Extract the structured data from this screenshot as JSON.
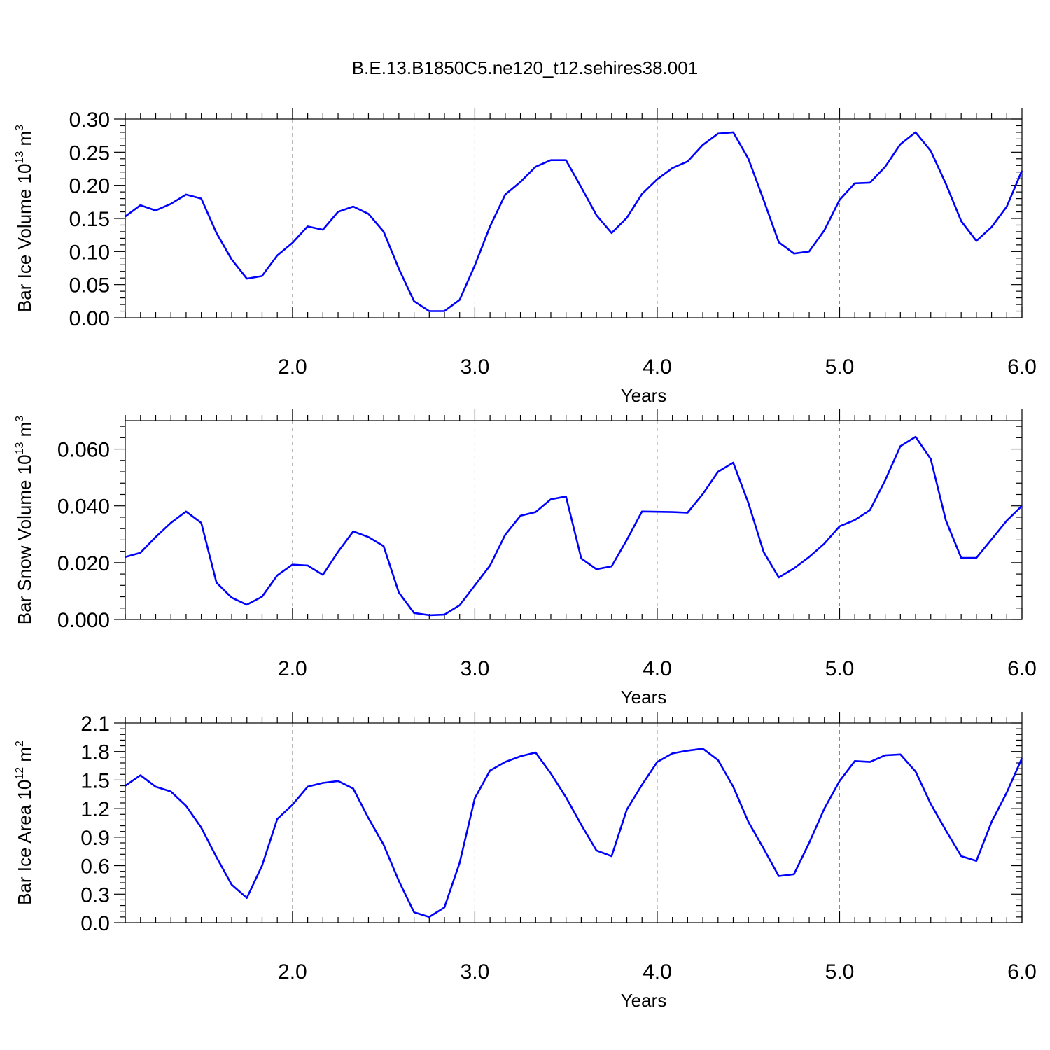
{
  "figure_title": "B.E.13.B1850C5.ne120_t12.sehires38.001",
  "chart_data": [
    {
      "type": "line",
      "title": "",
      "xlabel": "Years",
      "ylabel": {
        "base": "Bar Ice Volume 10",
        "exponent": "13",
        "unit": " m",
        "unit_exponent": "3"
      },
      "xlim": [
        1.083,
        6.0
      ],
      "ylim": [
        0.0,
        0.3
      ],
      "xticks": [
        2.0,
        3.0,
        4.0,
        5.0,
        6.0
      ],
      "xtick_labels": [
        "2.0",
        "3.0",
        "4.0",
        "5.0",
        "6.0"
      ],
      "yticks": [
        0.0,
        0.05,
        0.1,
        0.15,
        0.2,
        0.25,
        0.3
      ],
      "ytick_labels": [
        "0.00",
        "0.05",
        "0.10",
        "0.15",
        "0.20",
        "0.25",
        "0.30"
      ],
      "grid": "x-dashed",
      "series": [
        {
          "color": "#0000ff",
          "values": [
            0.153,
            0.17,
            0.162,
            0.172,
            0.186,
            0.18,
            0.128,
            0.088,
            0.059,
            0.063,
            0.094,
            0.113,
            0.138,
            0.133,
            0.16,
            0.168,
            0.157,
            0.13,
            0.074,
            0.025,
            0.01,
            0.01,
            0.027,
            0.079,
            0.138,
            0.186,
            0.205,
            0.228,
            0.238,
            0.238,
            0.197,
            0.155,
            0.128,
            0.151,
            0.187,
            0.209,
            0.226,
            0.236,
            0.261,
            0.278,
            0.28,
            0.24,
            0.178,
            0.114,
            0.097,
            0.1,
            0.132,
            0.178,
            0.203,
            0.204,
            0.228,
            0.262,
            0.28,
            0.252,
            0.202,
            0.146,
            0.116,
            0.137,
            0.168,
            0.222
          ]
        }
      ]
    },
    {
      "type": "line",
      "title": "",
      "xlabel": "Years",
      "ylabel": {
        "base": "Bar Snow Volume 10",
        "exponent": "13",
        "unit": " m",
        "unit_exponent": "3"
      },
      "xlim": [
        1.083,
        6.0
      ],
      "ylim": [
        0.0,
        0.07
      ],
      "xticks": [
        2.0,
        3.0,
        4.0,
        5.0,
        6.0
      ],
      "xtick_labels": [
        "2.0",
        "3.0",
        "4.0",
        "5.0",
        "6.0"
      ],
      "yticks": [
        0.0,
        0.02,
        0.04,
        0.06
      ],
      "ytick_labels": [
        "0.000",
        "0.020",
        "0.040",
        "0.060"
      ],
      "grid": "x-dashed",
      "series": [
        {
          "color": "#0000ff",
          "values": [
            0.022,
            0.0235,
            0.029,
            0.034,
            0.038,
            0.034,
            0.013,
            0.0077,
            0.0052,
            0.008,
            0.0155,
            0.0193,
            0.019,
            0.0157,
            0.0238,
            0.031,
            0.029,
            0.0258,
            0.0095,
            0.0023,
            0.0015,
            0.0017,
            0.005,
            0.012,
            0.019,
            0.0298,
            0.0365,
            0.0378,
            0.0423,
            0.0433,
            0.0215,
            0.0177,
            0.0187,
            0.028,
            0.038,
            0.0379,
            0.0378,
            0.0376,
            0.0442,
            0.052,
            0.0552,
            0.041,
            0.0238,
            0.0148,
            0.018,
            0.022,
            0.0267,
            0.0328,
            0.035,
            0.0385,
            0.049,
            0.061,
            0.0643,
            0.0565,
            0.0348,
            0.0217,
            0.0217,
            0.0282,
            0.0348,
            0.04
          ]
        }
      ]
    },
    {
      "type": "line",
      "title": "",
      "xlabel": "Years",
      "ylabel": {
        "base": "Bar Ice Area 10",
        "exponent": "12",
        "unit": " m",
        "unit_exponent": "2"
      },
      "xlim": [
        1.083,
        6.0
      ],
      "ylim": [
        0.0,
        2.1
      ],
      "xticks": [
        2.0,
        3.0,
        4.0,
        5.0,
        6.0
      ],
      "xtick_labels": [
        "2.0",
        "3.0",
        "4.0",
        "5.0",
        "6.0"
      ],
      "yticks": [
        0.0,
        0.3,
        0.6,
        0.9,
        1.2,
        1.5,
        1.8,
        2.1
      ],
      "ytick_labels": [
        "0.0",
        "0.3",
        "0.6",
        "0.9",
        "1.2",
        "1.5",
        "1.8",
        "2.1"
      ],
      "grid": "x-dashed",
      "series": [
        {
          "color": "#0000ff",
          "values": [
            1.44,
            1.55,
            1.43,
            1.38,
            1.23,
            1.0,
            0.69,
            0.4,
            0.26,
            0.6,
            1.09,
            1.24,
            1.43,
            1.47,
            1.49,
            1.41,
            1.1,
            0.82,
            0.44,
            0.11,
            0.06,
            0.16,
            0.63,
            1.31,
            1.6,
            1.69,
            1.75,
            1.79,
            1.57,
            1.32,
            1.03,
            0.76,
            0.7,
            1.19,
            1.45,
            1.69,
            1.78,
            1.81,
            1.83,
            1.71,
            1.43,
            1.06,
            0.78,
            0.49,
            0.51,
            0.84,
            1.2,
            1.49,
            1.7,
            1.69,
            1.76,
            1.77,
            1.59,
            1.25,
            0.97,
            0.7,
            0.65,
            1.06,
            1.37,
            1.73
          ]
        }
      ]
    }
  ]
}
